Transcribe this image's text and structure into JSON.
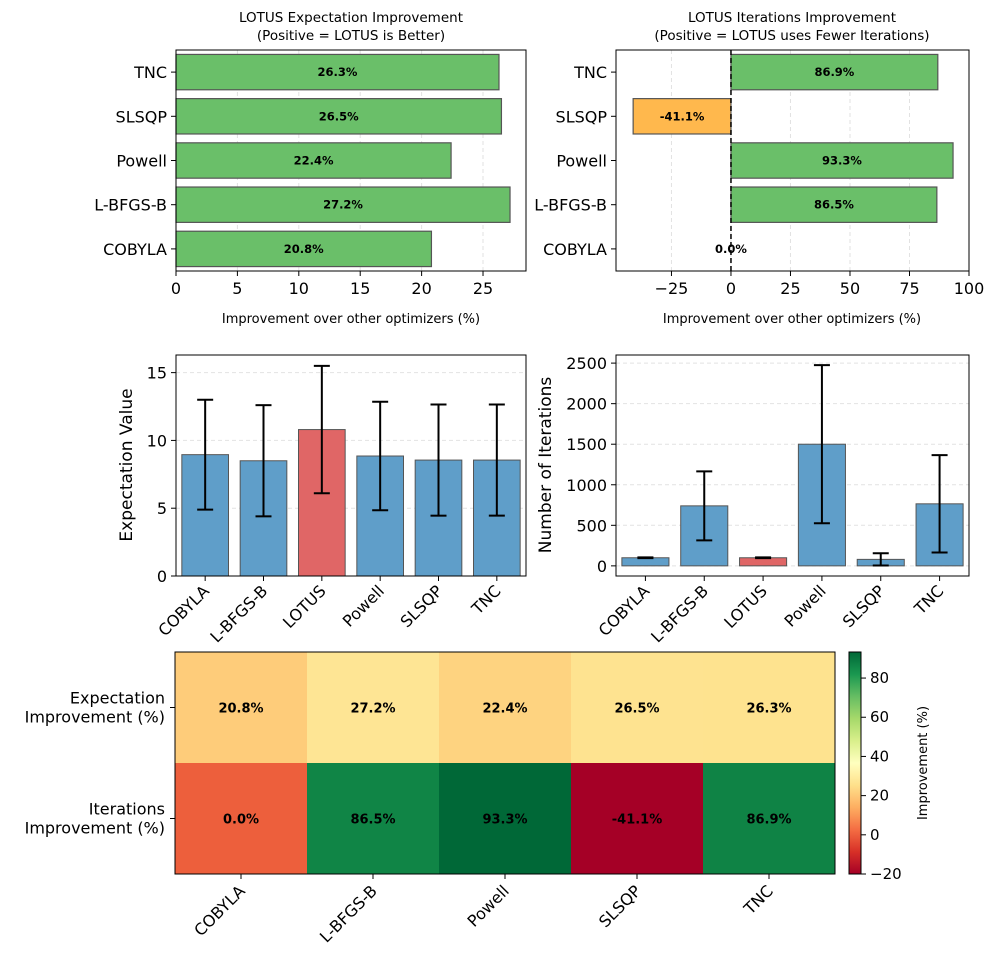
{
  "chart_data": [
    {
      "type": "bar",
      "orientation": "horizontal",
      "title": "LOTUS Expectation Improvement",
      "subtitle": "(Positive = LOTUS is Better)",
      "xlabel": "Improvement over other optimizers (%)",
      "categories": [
        "COBYLA",
        "L-BFGS-B",
        "Powell",
        "SLSQP",
        "TNC"
      ],
      "values": [
        20.8,
        27.2,
        22.4,
        26.5,
        26.3
      ],
      "labels": [
        "20.8%",
        "27.2%",
        "22.4%",
        "26.5%",
        "26.3%"
      ],
      "xlim": [
        0,
        28.5
      ],
      "xticks": [
        0,
        5,
        10,
        15,
        20,
        25
      ],
      "xtick_labels": [
        "0",
        "5",
        "10",
        "15",
        "20",
        "25"
      ],
      "grid": true,
      "colors": {
        "positive": "#6abf69",
        "negative": "#ffb84d",
        "edge": "#555555"
      }
    },
    {
      "type": "bar",
      "orientation": "horizontal",
      "title": "LOTUS Iterations Improvement",
      "subtitle": "(Positive = LOTUS uses Fewer Iterations)",
      "xlabel": "Improvement over other optimizers (%)",
      "categories": [
        "COBYLA",
        "L-BFGS-B",
        "Powell",
        "SLSQP",
        "TNC"
      ],
      "values": [
        0.0,
        86.5,
        93.3,
        -41.1,
        86.9
      ],
      "labels": [
        "0.0%",
        "86.5%",
        "93.3%",
        "-41.1%",
        "86.9%"
      ],
      "xlim": [
        -48.3,
        100
      ],
      "xticks": [
        -25,
        0,
        25,
        50,
        75,
        100
      ],
      "xtick_labels": [
        "−25",
        "0",
        "25",
        "50",
        "75",
        "100"
      ],
      "zero_line": true,
      "grid": true,
      "colors": {
        "positive": "#6abf69",
        "negative": "#ffb84d",
        "edge": "#555555"
      }
    },
    {
      "type": "bar",
      "ylabel": "Expectation Value",
      "categories": [
        "COBYLA",
        "L-BFGS-B",
        "LOTUS",
        "Powell",
        "SLSQP",
        "TNC"
      ],
      "values": [
        8.95,
        8.5,
        10.8,
        8.85,
        8.55,
        8.55
      ],
      "errors": [
        4.05,
        4.1,
        4.7,
        4.0,
        4.1,
        4.1
      ],
      "ylim": [
        0,
        16.3
      ],
      "yticks": [
        0,
        5,
        10,
        15
      ],
      "ytick_labels": [
        "0",
        "5",
        "10",
        "15"
      ],
      "grid": true,
      "highlight": "LOTUS",
      "colors": {
        "bar": "#5f9ec9",
        "highlight": "#e06666",
        "edge": "#555555"
      }
    },
    {
      "type": "bar",
      "ylabel": "Number of Iterations",
      "categories": [
        "COBYLA",
        "L-BFGS-B",
        "LOTUS",
        "Powell",
        "SLSQP",
        "TNC"
      ],
      "values": [
        100,
        740,
        100,
        1500,
        80,
        765
      ],
      "errors": [
        5,
        425,
        5,
        975,
        75,
        600
      ],
      "ylim": [
        -125,
        2600
      ],
      "yticks": [
        0,
        500,
        1000,
        1500,
        2000,
        2500
      ],
      "ytick_labels": [
        "0",
        "500",
        "1000",
        "1500",
        "2000",
        "2500"
      ],
      "grid": true,
      "highlight": "LOTUS",
      "colors": {
        "bar": "#5f9ec9",
        "highlight": "#e06666",
        "edge": "#555555"
      }
    },
    {
      "type": "heatmap",
      "rows": [
        "Expectation\nImprovement (%)",
        "Iterations\nImprovement (%)"
      ],
      "columns": [
        "COBYLA",
        "L-BFGS-B",
        "Powell",
        "SLSQP",
        "TNC"
      ],
      "values": [
        [
          20.8,
          27.2,
          22.4,
          26.5,
          26.3
        ],
        [
          0.0,
          86.5,
          93.3,
          -41.1,
          86.9
        ]
      ],
      "labels": [
        [
          "20.8%",
          "27.2%",
          "22.4%",
          "26.5%",
          "26.3%"
        ],
        [
          "0.0%",
          "86.5%",
          "93.3%",
          "-41.1%",
          "86.9%"
        ]
      ],
      "colormap": "RdYlGn",
      "vmin": -20,
      "vmax": 93.3,
      "colorbar_label": "Improvement (%)",
      "colorbar_ticks": [
        -20,
        0,
        20,
        40,
        60,
        80
      ],
      "colorbar_tick_labels": [
        "−20",
        "0",
        "20",
        "40",
        "60",
        "80"
      ]
    }
  ]
}
